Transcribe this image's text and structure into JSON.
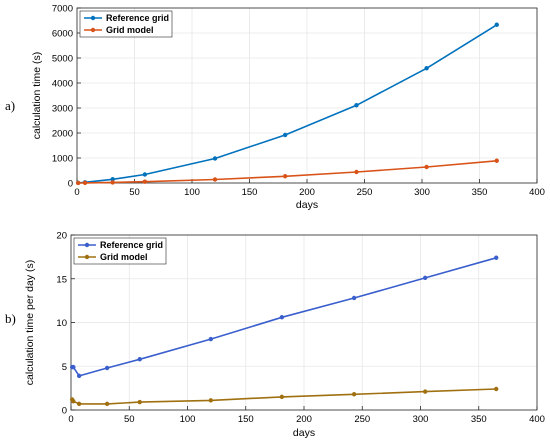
{
  "chart_data": [
    {
      "type": "line",
      "panel_label": "a)",
      "xlabel": "days",
      "ylabel": "calculation time (s)",
      "xlim": [
        0,
        400
      ],
      "ylim": [
        0,
        7000
      ],
      "xticks": [
        0,
        50,
        100,
        150,
        200,
        250,
        300,
        350,
        400
      ],
      "yticks": [
        0,
        1000,
        2000,
        3000,
        4000,
        5000,
        6000,
        7000
      ],
      "grid": true,
      "legend_position": "top-left",
      "series": [
        {
          "name": "Reference grid",
          "color": "#0072BD",
          "x": [
            1,
            7,
            31,
            59,
            120,
            181,
            243,
            304,
            365
          ],
          "y": [
            5,
            27,
            150,
            340,
            980,
            1920,
            3110,
            4590,
            6330
          ]
        },
        {
          "name": "Grid model",
          "color": "#D95319",
          "x": [
            1,
            7,
            31,
            59,
            120,
            181,
            243,
            304,
            365
          ],
          "y": [
            1,
            5,
            22,
            52,
            140,
            270,
            440,
            640,
            890
          ]
        }
      ]
    },
    {
      "type": "line",
      "panel_label": "b)",
      "xlabel": "days",
      "ylabel": "calculation time per day (s)",
      "xlim": [
        0,
        400
      ],
      "ylim": [
        0,
        20
      ],
      "xticks": [
        0,
        50,
        100,
        150,
        200,
        250,
        300,
        350,
        400
      ],
      "yticks": [
        0,
        5,
        10,
        15,
        20
      ],
      "grid": true,
      "legend_position": "top-left",
      "series": [
        {
          "name": "Reference grid",
          "color": "#3A5FCD",
          "x": [
            1,
            2,
            7,
            31,
            59,
            120,
            181,
            243,
            304,
            365
          ],
          "y": [
            4.9,
            4.9,
            3.9,
            4.8,
            5.8,
            8.1,
            10.6,
            12.8,
            15.1,
            17.4
          ]
        },
        {
          "name": "Grid model",
          "color": "#A07010",
          "x": [
            1,
            2,
            7,
            31,
            59,
            120,
            181,
            243,
            304,
            365
          ],
          "y": [
            1.2,
            1.0,
            0.7,
            0.7,
            0.9,
            1.1,
            1.5,
            1.8,
            2.1,
            2.4
          ]
        }
      ]
    }
  ]
}
